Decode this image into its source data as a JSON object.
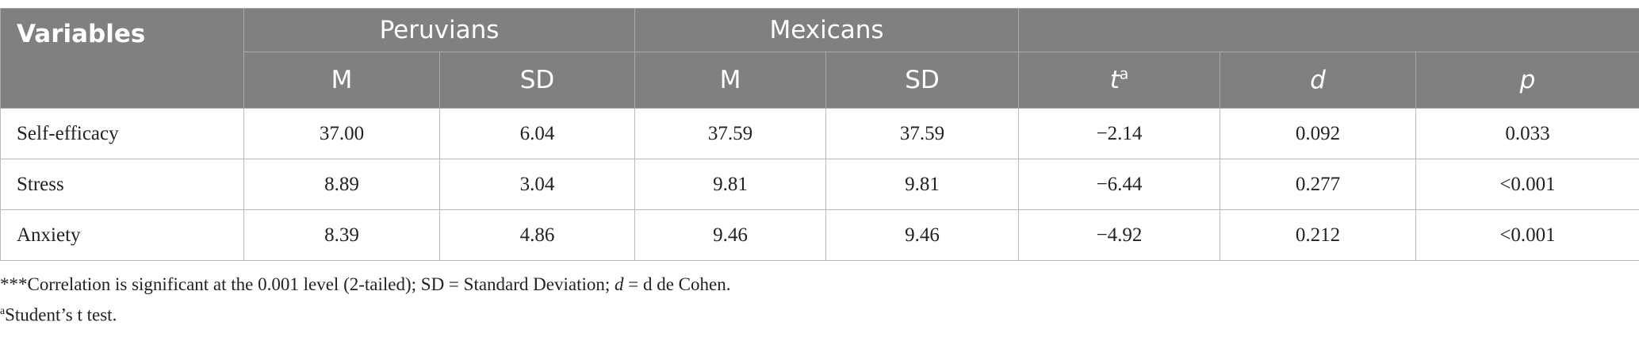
{
  "table": {
    "header": {
      "variables": "Variables",
      "groups": [
        "Peruvians",
        "Mexicans"
      ],
      "columns": [
        "M",
        "SD",
        "M",
        "SD",
        {
          "text": "t",
          "sup": "a"
        },
        "d",
        "p"
      ]
    },
    "rows": [
      [
        "Self-efficacy",
        "37.00",
        "6.04",
        "37.59",
        "37.59",
        "−2.14",
        "0.092",
        "0.033"
      ],
      [
        "Stress",
        "8.89",
        "3.04",
        "9.81",
        "9.81",
        "−6.44",
        "0.277",
        "<0.001"
      ],
      [
        "Anxiety",
        "8.39",
        "4.86",
        "9.46",
        "9.46",
        "−4.92",
        "0.212",
        "<0.001"
      ]
    ]
  },
  "footnotes": [
    [
      "***Correlation is significant at the 0.001 level (2-tailed); SD = Standard Deviation; ",
      "d",
      " = d de Cohen."
    ],
    {
      "sup": "a",
      "text": "Student’s t test."
    }
  ]
}
